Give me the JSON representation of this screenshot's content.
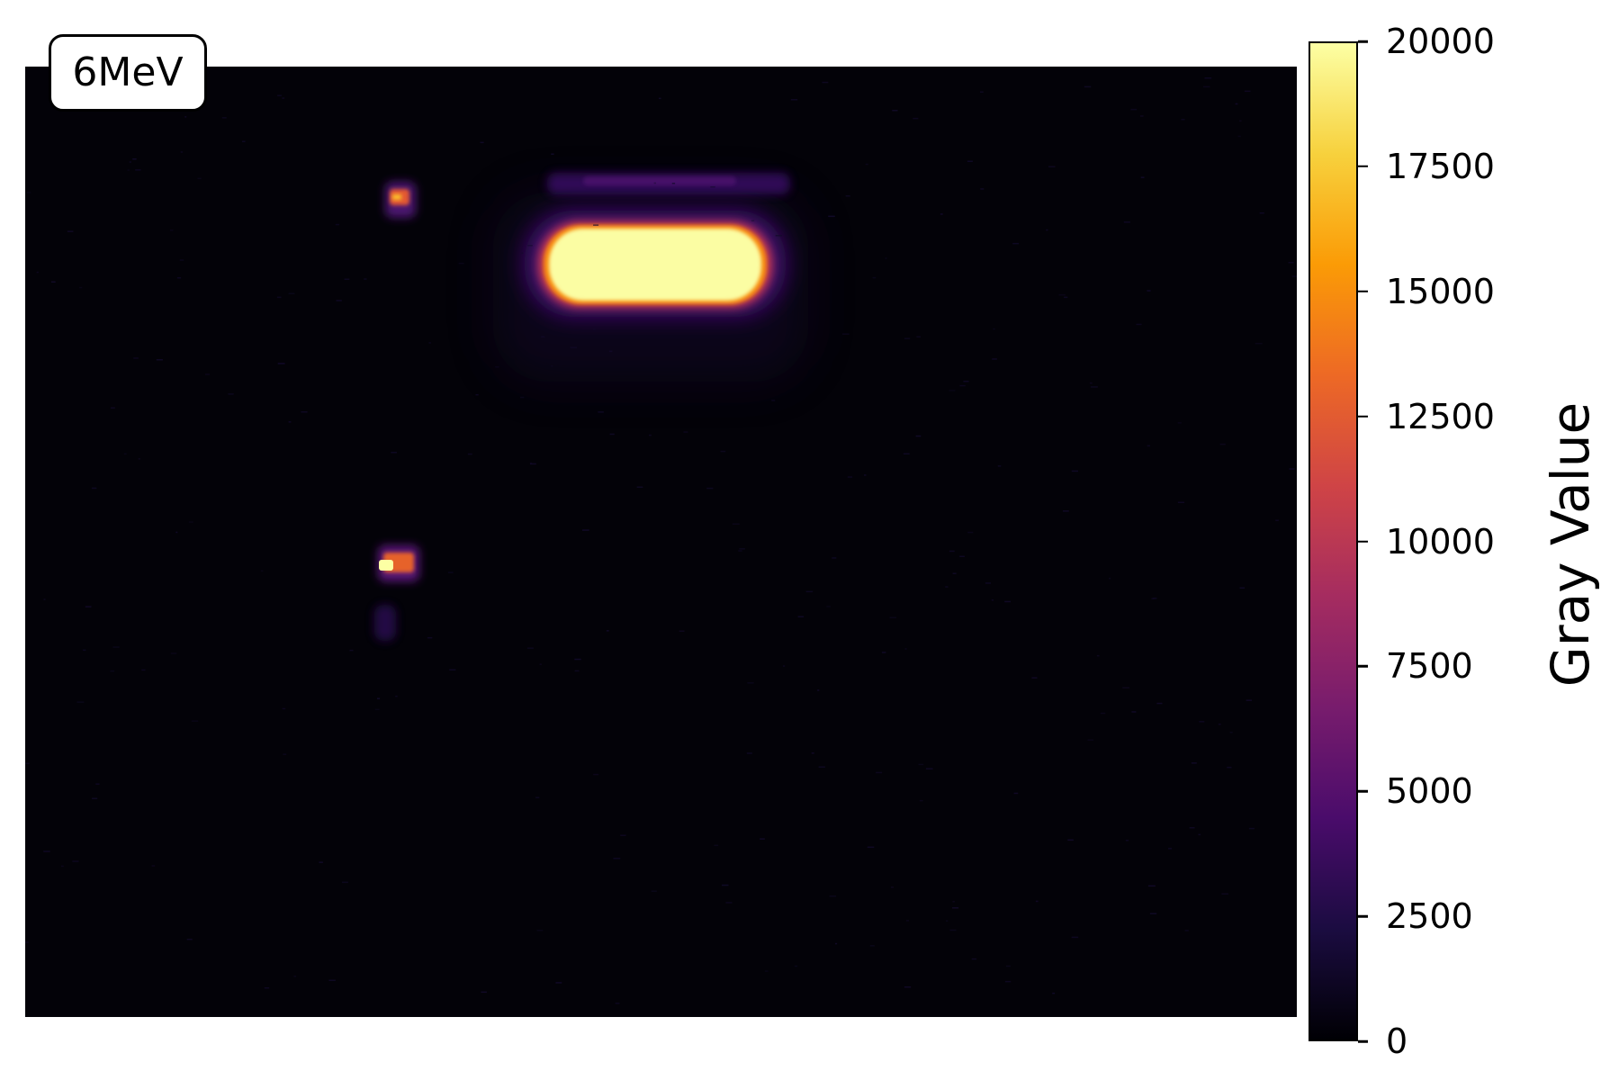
{
  "chart_data": {
    "type": "heatmap",
    "title": "",
    "annotation": "6MeV",
    "colormap": "inferno",
    "background_color": "#030208",
    "colorbar": {
      "label": "Gray Value",
      "range": [
        0,
        20000
      ],
      "ticks": [
        0,
        2500,
        5000,
        7500,
        10000,
        12500,
        15000,
        17500,
        20000
      ],
      "tick_labels": [
        "0",
        "2500",
        "5000",
        "7500",
        "10000",
        "12500",
        "15000",
        "17500",
        "20000"
      ]
    },
    "features": [
      {
        "name": "main-spot",
        "shape": "rounded-rectangle",
        "gray_value": 20000
      },
      {
        "name": "upper-left-artifact",
        "shape": "small-cluster",
        "gray_value": 12000
      },
      {
        "name": "middle-left-artifact",
        "shape": "small-cluster",
        "gray_value": 19000
      }
    ]
  }
}
